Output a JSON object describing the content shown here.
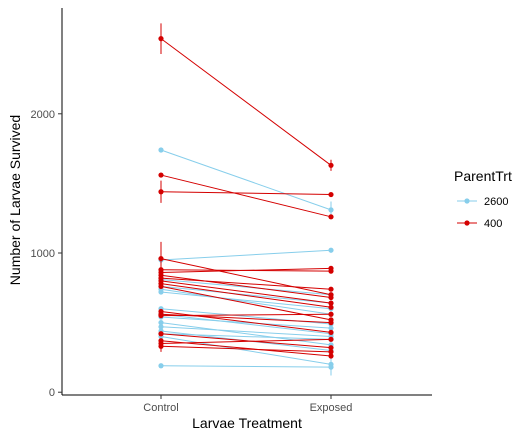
{
  "chart_data": {
    "type": "line",
    "xlabel": "Larvae Treatment",
    "ylabel": "Number of Larvae Survived",
    "categories": [
      "Control",
      "Exposed"
    ],
    "ylim": [
      -20,
      2760
    ],
    "y_ticks": [
      0,
      1000,
      2000
    ],
    "grid": false,
    "legend": {
      "title": "ParentTrt",
      "placement": "right",
      "entries": [
        {
          "label": "2600",
          "color": "#87CEEB"
        },
        {
          "label": "400",
          "color": "#D40000"
        }
      ]
    },
    "series": [
      {
        "group": "2600",
        "color": "#87CEEB",
        "lines": [
          {
            "values": [
              1740,
              1310
            ],
            "error": [
              0,
              60
            ]
          },
          {
            "values": [
              950,
              1020
            ],
            "error": [
              0,
              0
            ]
          },
          {
            "values": [
              810,
              700
            ],
            "error": [
              0,
              0
            ]
          },
          {
            "values": [
              760,
              640
            ],
            "error": [
              0,
              0
            ]
          },
          {
            "values": [
              740,
              560
            ],
            "error": [
              0,
              0
            ]
          },
          {
            "values": [
              720,
              600
            ],
            "error": [
              0,
              0
            ]
          },
          {
            "values": [
              600,
              490
            ],
            "error": [
              0,
              0
            ]
          },
          {
            "values": [
              560,
              420
            ],
            "error": [
              0,
              0
            ]
          },
          {
            "values": [
              540,
              460
            ],
            "error": [
              0,
              0
            ]
          },
          {
            "values": [
              500,
              340
            ],
            "error": [
              0,
              0
            ]
          },
          {
            "values": [
              470,
              400
            ],
            "error": [
              0,
              0
            ]
          },
          {
            "values": [
              440,
              300
            ],
            "error": [
              0,
              0
            ]
          },
          {
            "values": [
              420,
              380
            ],
            "error": [
              0,
              0
            ]
          },
          {
            "values": [
              400,
              200
            ],
            "error": [
              0,
              80
            ]
          },
          {
            "values": [
              190,
              180
            ],
            "error": [
              0,
              0
            ]
          }
        ]
      },
      {
        "group": "400",
        "color": "#D40000",
        "lines": [
          {
            "values": [
              2540,
              1630
            ],
            "error": [
              110,
              40
            ]
          },
          {
            "values": [
              1560,
              1260
            ],
            "error": [
              0,
              0
            ]
          },
          {
            "values": [
              1440,
              1420
            ],
            "error": [
              80,
              0
            ]
          },
          {
            "values": [
              960,
              700
            ],
            "error": [
              120,
              0
            ]
          },
          {
            "values": [
              880,
              870
            ],
            "error": [
              0,
              0
            ]
          },
          {
            "values": [
              860,
              890
            ],
            "error": [
              0,
              0
            ]
          },
          {
            "values": [
              840,
              680
            ],
            "error": [
              0,
              0
            ]
          },
          {
            "values": [
              820,
              740
            ],
            "error": [
              0,
              0
            ]
          },
          {
            "values": [
              800,
              640
            ],
            "error": [
              0,
              0
            ]
          },
          {
            "values": [
              780,
              610
            ],
            "error": [
              0,
              0
            ]
          },
          {
            "values": [
              760,
              520
            ],
            "error": [
              0,
              0
            ]
          },
          {
            "values": [
              580,
              430
            ],
            "error": [
              0,
              0
            ]
          },
          {
            "values": [
              560,
              500
            ],
            "error": [
              0,
              0
            ]
          },
          {
            "values": [
              550,
              560
            ],
            "error": [
              0,
              0
            ]
          },
          {
            "values": [
              420,
              320
            ],
            "error": [
              0,
              0
            ]
          },
          {
            "values": [
              370,
              260
            ],
            "error": [
              0,
              0
            ]
          },
          {
            "values": [
              350,
              380
            ],
            "error": [
              0,
              0
            ]
          },
          {
            "values": [
              330,
              290
            ],
            "error": [
              40,
              0
            ]
          }
        ]
      }
    ]
  }
}
